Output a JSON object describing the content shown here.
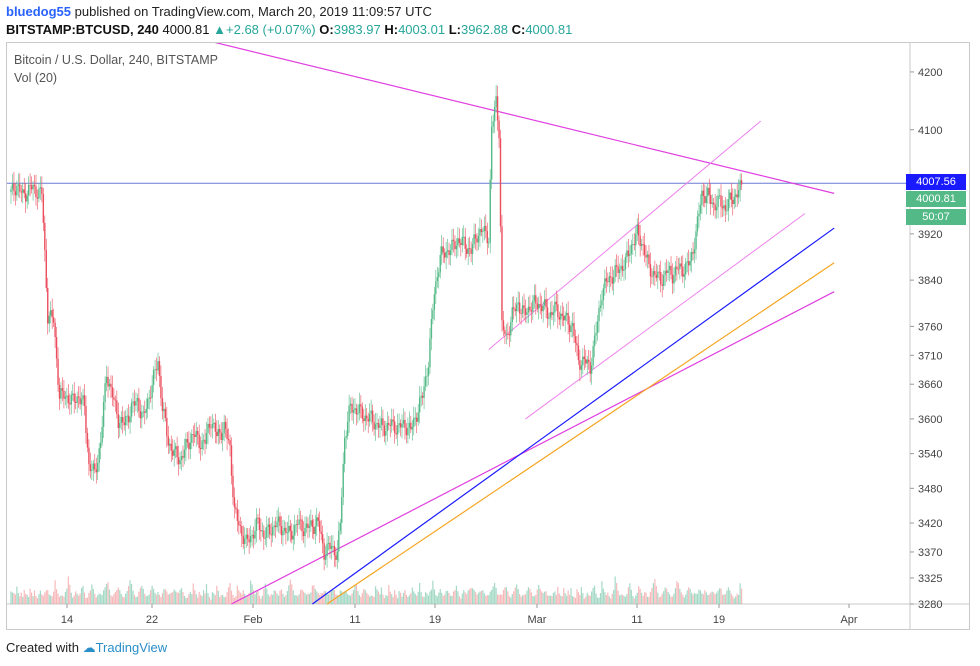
{
  "header": {
    "author": "bluedog55",
    "published_text": " published on TradingView.com, March 20, 2019 11:09:57 UTC",
    "symbol_line": "BITSTAMP:BTCUSD, 240",
    "last_price": "4000.81",
    "change_arrow": "▲",
    "change": "+2.68 (+0.07%)",
    "o_label": "O:",
    "o_value": "3983.97",
    "h_label": "H:",
    "h_value": "4003.01",
    "l_label": "L:",
    "l_value": "3962.88",
    "c_label": "C:",
    "c_value": "4000.81"
  },
  "legend": {
    "title": "Bitcoin / U.S. Dollar, 240, BITSTAMP",
    "volume": "Vol (20)"
  },
  "price_boxes": {
    "line_price": "4007.56",
    "last_price": "4000.81",
    "countdown": "50:07"
  },
  "footer": {
    "created_with": "Created with ",
    "brand": "TradingView"
  },
  "colors": {
    "up": "#53b987",
    "down": "#eb4d5c",
    "vol_up": "#8fd0b8",
    "vol_down": "#f4a9aa",
    "magenta": "#e040e0",
    "blue_line": "#1a1aff",
    "orange_line": "#f5a623",
    "hline": "#6a7bd6",
    "channel": "#ee82ee"
  },
  "chart_data": {
    "type": "candlestick",
    "ylim": [
      3280,
      4250
    ],
    "y_ticks": [
      4200,
      4100,
      3920,
      3840,
      3760,
      3710,
      3660,
      3600,
      3540,
      3480,
      3420,
      3370,
      3325,
      3280
    ],
    "x_ticks": [
      "14",
      "22",
      "Feb",
      "11",
      "19",
      "Mar",
      "11",
      "19",
      "Apr"
    ],
    "horizontal_line": 4007.56,
    "close_path": [
      [
        0,
        3990
      ],
      [
        4,
        4005
      ],
      [
        8,
        3985
      ],
      [
        13,
        4000
      ],
      [
        17,
        3995
      ],
      [
        21,
        3990
      ],
      [
        25,
        3780
      ],
      [
        29,
        3770
      ],
      [
        33,
        3640
      ],
      [
        37,
        3640
      ],
      [
        42,
        3630
      ],
      [
        46,
        3640
      ],
      [
        50,
        3620
      ],
      [
        53,
        3520
      ],
      [
        57,
        3505
      ],
      [
        61,
        3560
      ],
      [
        65,
        3680
      ],
      [
        69,
        3640
      ],
      [
        73,
        3600
      ],
      [
        77,
        3590
      ],
      [
        82,
        3620
      ],
      [
        86,
        3630
      ],
      [
        90,
        3600
      ],
      [
        95,
        3650
      ],
      [
        100,
        3700
      ],
      [
        103,
        3620
      ],
      [
        107,
        3560
      ],
      [
        111,
        3540
      ],
      [
        115,
        3530
      ],
      [
        120,
        3555
      ],
      [
        124,
        3575
      ],
      [
        128,
        3560
      ],
      [
        132,
        3560
      ],
      [
        136,
        3600
      ],
      [
        140,
        3570
      ],
      [
        145,
        3585
      ],
      [
        149,
        3550
      ],
      [
        152,
        3440
      ],
      [
        156,
        3410
      ],
      [
        160,
        3385
      ],
      [
        164,
        3400
      ],
      [
        168,
        3420
      ],
      [
        172,
        3400
      ],
      [
        176,
        3405
      ],
      [
        180,
        3420
      ],
      [
        185,
        3410
      ],
      [
        190,
        3400
      ],
      [
        195,
        3420
      ],
      [
        200,
        3410
      ],
      [
        204,
        3415
      ],
      [
        209,
        3420
      ],
      [
        213,
        3370
      ],
      [
        218,
        3380
      ],
      [
        222,
        3365
      ],
      [
        224,
        3420
      ],
      [
        227,
        3570
      ],
      [
        231,
        3620
      ],
      [
        236,
        3615
      ],
      [
        240,
        3605
      ],
      [
        245,
        3600
      ],
      [
        249,
        3590
      ],
      [
        254,
        3585
      ],
      [
        258,
        3590
      ],
      [
        263,
        3585
      ],
      [
        268,
        3590
      ],
      [
        272,
        3580
      ],
      [
        276,
        3610
      ],
      [
        280,
        3640
      ],
      [
        284,
        3700
      ],
      [
        288,
        3820
      ],
      [
        292,
        3880
      ],
      [
        296,
        3890
      ],
      [
        300,
        3895
      ],
      [
        304,
        3910
      ],
      [
        309,
        3900
      ],
      [
        313,
        3890
      ],
      [
        317,
        3920
      ],
      [
        321,
        3925
      ],
      [
        325,
        3915
      ],
      [
        327,
        4100
      ],
      [
        330,
        4150
      ],
      [
        332,
        4100
      ],
      [
        334,
        3760
      ],
      [
        337,
        3740
      ],
      [
        341,
        3780
      ],
      [
        345,
        3800
      ],
      [
        349,
        3780
      ],
      [
        353,
        3795
      ],
      [
        357,
        3800
      ],
      [
        362,
        3795
      ],
      [
        366,
        3780
      ],
      [
        370,
        3790
      ],
      [
        374,
        3780
      ],
      [
        378,
        3770
      ],
      [
        382,
        3760
      ],
      [
        386,
        3700
      ],
      [
        390,
        3700
      ],
      [
        394,
        3690
      ],
      [
        398,
        3750
      ],
      [
        402,
        3820
      ],
      [
        406,
        3840
      ],
      [
        410,
        3850
      ],
      [
        414,
        3860
      ],
      [
        418,
        3870
      ],
      [
        422,
        3900
      ],
      [
        426,
        3920
      ],
      [
        430,
        3900
      ],
      [
        434,
        3860
      ],
      [
        438,
        3850
      ],
      [
        442,
        3840
      ],
      [
        446,
        3855
      ],
      [
        450,
        3850
      ],
      [
        454,
        3860
      ],
      [
        458,
        3860
      ],
      [
        462,
        3870
      ],
      [
        466,
        3920
      ],
      [
        470,
        3990
      ],
      [
        474,
        3985
      ],
      [
        478,
        3970
      ],
      [
        482,
        3975
      ],
      [
        486,
        3965
      ],
      [
        490,
        3980
      ],
      [
        494,
        3990
      ],
      [
        497,
        4001
      ]
    ],
    "volume_levels": [
      0.3,
      0.22,
      0.18,
      0.14,
      0.25,
      0.16,
      0.12,
      0.2,
      0.15,
      0.3,
      0.18,
      0.14,
      0.1,
      0.22,
      0.17,
      0.13,
      0.26,
      0.19,
      0.11,
      0.16,
      0.2,
      0.14,
      0.12,
      0.18,
      0.24,
      0.3,
      0.2,
      0.15,
      0.12,
      0.18,
      0.34,
      0.22,
      0.17,
      0.14,
      0.2,
      0.16,
      0.12,
      0.18,
      0.22,
      0.4,
      0.3,
      0.2,
      0.14,
      0.18,
      0.22,
      0.16,
      0.12,
      0.15,
      0.24,
      0.3,
      0.22,
      0.14,
      0.12,
      0.18,
      0.2,
      0.28,
      0.22,
      0.16,
      0.12,
      0.19,
      0.22,
      0.17,
      0.14,
      0.2,
      0.24,
      0.3,
      0.36,
      0.28,
      0.2,
      0.14,
      0.16,
      0.18,
      0.2,
      0.24,
      0.22,
      0.18,
      0.16,
      0.14,
      0.18,
      0.2,
      0.26,
      0.34,
      0.3,
      0.22,
      0.18,
      0.16,
      0.14,
      0.2,
      0.24,
      0.26,
      0.22,
      0.16,
      0.14,
      0.18,
      0.2,
      0.24,
      0.28,
      0.22,
      0.16,
      0.14,
      0.2,
      0.18,
      0.16,
      0.2,
      0.24,
      0.22,
      0.18,
      0.14,
      0.16,
      0.2,
      0.26,
      0.3,
      0.22,
      0.18,
      0.16,
      0.2,
      0.24,
      0.2,
      0.16,
      0.14,
      0.12,
      0.16,
      0.18,
      0.14
    ],
    "lines": [
      {
        "name_color": "magenta",
        "p1": [
          -5,
          4340
        ],
        "p2": [
          560,
          3990
        ]
      },
      {
        "name_color": "channel",
        "p1": [
          325,
          3720
        ],
        "p2": [
          510,
          4115
        ]
      },
      {
        "name_color": "channel",
        "p1": [
          350,
          3600
        ],
        "p2": [
          540,
          3955
        ]
      },
      {
        "name_color": "magenta",
        "p1": [
          150,
          3280
        ],
        "p2": [
          560,
          3820
        ]
      },
      {
        "name_color": "blue_line",
        "p1": [
          205,
          3280
        ],
        "p2": [
          560,
          3930
        ]
      },
      {
        "name_color": "orange_line",
        "p1": [
          215,
          3280
        ],
        "p2": [
          560,
          3870
        ]
      }
    ]
  }
}
